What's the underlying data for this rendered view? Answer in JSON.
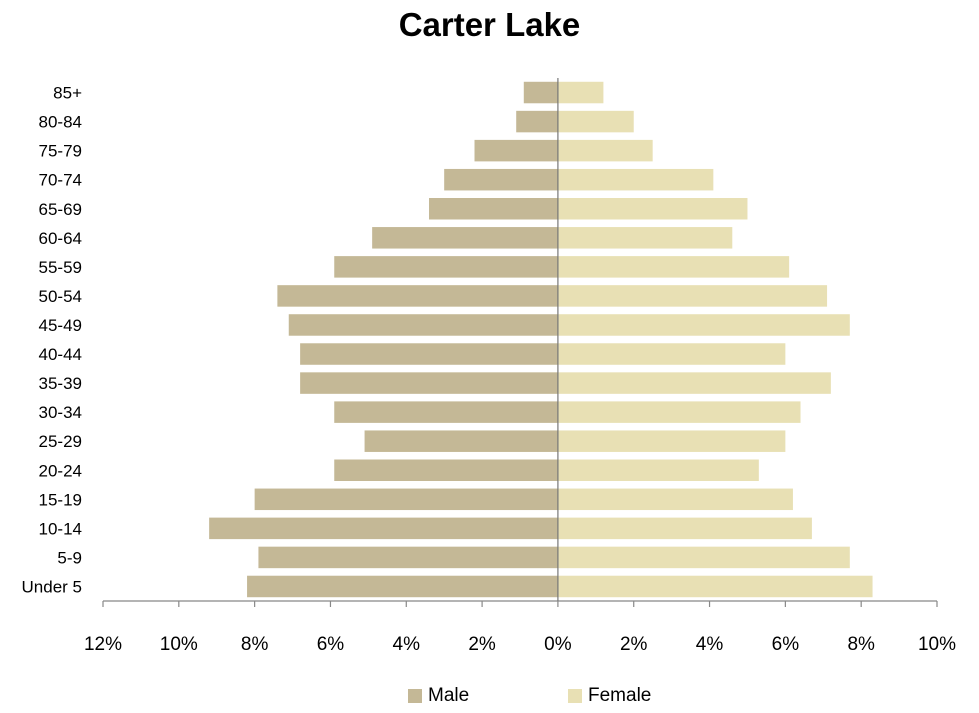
{
  "chart_data": {
    "type": "bar",
    "orientation": "horizontal",
    "subtype": "population-pyramid",
    "title": "Carter Lake",
    "categories": [
      "Under 5",
      "5-9",
      "10-14",
      "15-19",
      "20-24",
      "25-29",
      "30-34",
      "35-39",
      "40-44",
      "45-49",
      "50-54",
      "55-59",
      "60-64",
      "65-69",
      "70-74",
      "75-79",
      "80-84",
      "85+"
    ],
    "series": [
      {
        "name": "Male",
        "color": "#c4b896",
        "values": [
          8.2,
          7.9,
          9.2,
          8.0,
          5.9,
          5.1,
          5.9,
          6.8,
          6.8,
          7.1,
          7.4,
          5.9,
          4.9,
          3.4,
          3.0,
          2.2,
          1.1,
          0.9
        ]
      },
      {
        "name": "Female",
        "color": "#e8e0b4",
        "values": [
          8.3,
          7.7,
          6.7,
          6.2,
          5.3,
          6.0,
          6.4,
          7.2,
          6.0,
          7.7,
          7.1,
          6.1,
          4.6,
          5.0,
          4.1,
          2.5,
          2.0,
          1.2
        ]
      }
    ],
    "xlim": [
      -12,
      10
    ],
    "xticks": [
      -12,
      -10,
      -8,
      -6,
      -4,
      -2,
      0,
      2,
      4,
      6,
      8,
      10
    ],
    "xtick_labels": [
      "12%",
      "10%",
      "8%",
      "6%",
      "4%",
      "2%",
      "0%",
      "2%",
      "4%",
      "6%",
      "8%",
      "10%"
    ],
    "xlabel": "",
    "ylabel": "",
    "grid": false,
    "legend_position": "bottom"
  }
}
